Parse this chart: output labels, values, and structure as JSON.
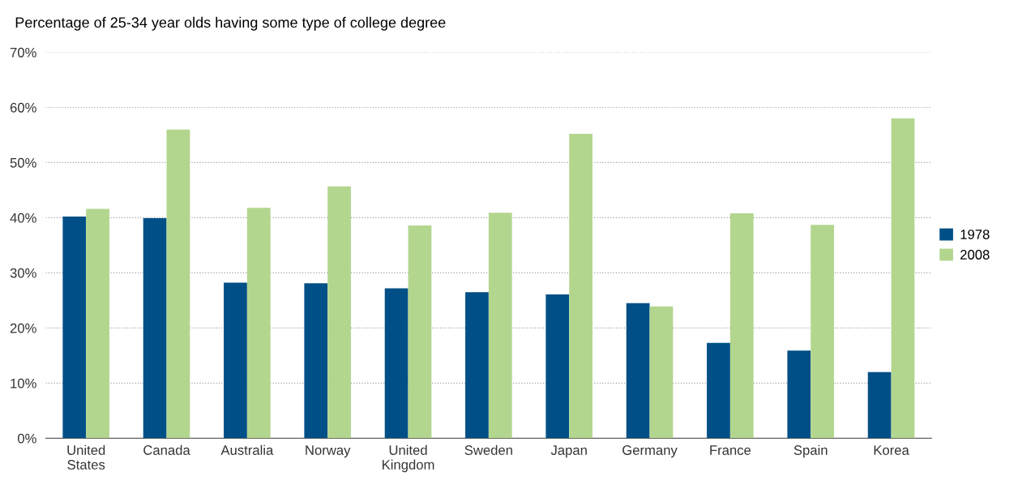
{
  "chart_data": {
    "type": "bar",
    "title": "Percentage of 25-34 year olds having some type of college degree",
    "categories": [
      "United\nStates",
      "Canada",
      "Australia",
      "Norway",
      "United\nKingdom",
      "Sweden",
      "Japan",
      "Germany",
      "France",
      "Spain",
      "Korea"
    ],
    "series": [
      {
        "name": "1978",
        "color": "#004f86",
        "values": [
          40.2,
          39.9,
          28.2,
          28.1,
          27.2,
          26.5,
          26.1,
          24.5,
          17.3,
          15.9,
          12.0
        ]
      },
      {
        "name": "2008",
        "color": "#b3d68f",
        "values": [
          41.6,
          56.0,
          41.8,
          45.7,
          38.6,
          40.9,
          55.2,
          23.9,
          40.8,
          38.7,
          58.0
        ]
      }
    ],
    "ylim": [
      0,
      70
    ],
    "yticks": [
      {
        "value": 0,
        "label": "0%"
      },
      {
        "value": 10,
        "label": "10%"
      },
      {
        "value": 20,
        "label": "20%"
      },
      {
        "value": 30,
        "label": "30%"
      },
      {
        "value": 40,
        "label": "40%"
      },
      {
        "value": 50,
        "label": "50%"
      },
      {
        "value": 60,
        "label": "60%"
      },
      {
        "value": 70,
        "label": "70%"
      }
    ],
    "grid": "y",
    "legend": "right"
  }
}
